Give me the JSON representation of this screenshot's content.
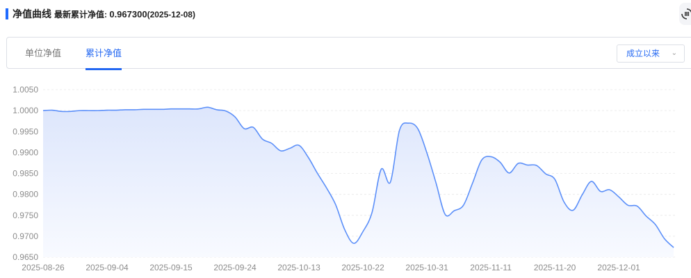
{
  "header": {
    "title": "净值曲线",
    "latest_label": "最新累计净值: ",
    "latest_value": "0.967300",
    "latest_date": "(2025-12-08)",
    "refresh_icon": "refresh-pause-icon"
  },
  "tabs": [
    {
      "label": "单位净值",
      "active": false
    },
    {
      "label": "累计净值",
      "active": true
    }
  ],
  "range_select": {
    "value": "成立以来"
  },
  "colors": {
    "accent": "#2468f2",
    "line": "#5b8ff9",
    "area": "#e3ebfd"
  },
  "chart_data": {
    "type": "area",
    "title": "",
    "xlabel": "",
    "ylabel": "",
    "ylim": [
      0.965,
      1.005
    ],
    "y_ticks": [
      "1.0050",
      "1.0000",
      "0.9950",
      "0.9900",
      "0.9850",
      "0.9800",
      "0.9750",
      "0.9700",
      "0.9650"
    ],
    "x_tick_labels": [
      "2025-08-26",
      "2025-09-04",
      "2025-09-15",
      "2025-09-24",
      "2025-10-13",
      "2025-10-22",
      "2025-10-31",
      "2025-11-11",
      "2025-11-20",
      "2025-12-01"
    ],
    "x_tick_every": 7,
    "grid": true,
    "values": [
      1.0,
      1.0001,
      0.9998,
      0.9998,
      1.0,
      1.0,
      1.0,
      1.0001,
      1.0001,
      1.0002,
      1.0002,
      1.0003,
      1.0003,
      1.0003,
      1.0004,
      1.0004,
      1.0004,
      1.0004,
      1.0008,
      1.0002,
      0.9999,
      0.9985,
      0.9957,
      0.996,
      0.9932,
      0.9922,
      0.9904,
      0.991,
      0.9917,
      0.9889,
      0.9851,
      0.9816,
      0.9776,
      0.9716,
      0.9683,
      0.9711,
      0.9757,
      0.986,
      0.9829,
      0.9953,
      0.997,
      0.9957,
      0.9899,
      0.9827,
      0.9752,
      0.9761,
      0.9774,
      0.9827,
      0.9882,
      0.989,
      0.9877,
      0.9851,
      0.9874,
      0.987,
      0.9869,
      0.9849,
      0.9836,
      0.9782,
      0.9762,
      0.9799,
      0.9831,
      0.9807,
      0.9811,
      0.9794,
      0.9774,
      0.9772,
      0.9748,
      0.9728,
      0.9694,
      0.9673
    ]
  }
}
